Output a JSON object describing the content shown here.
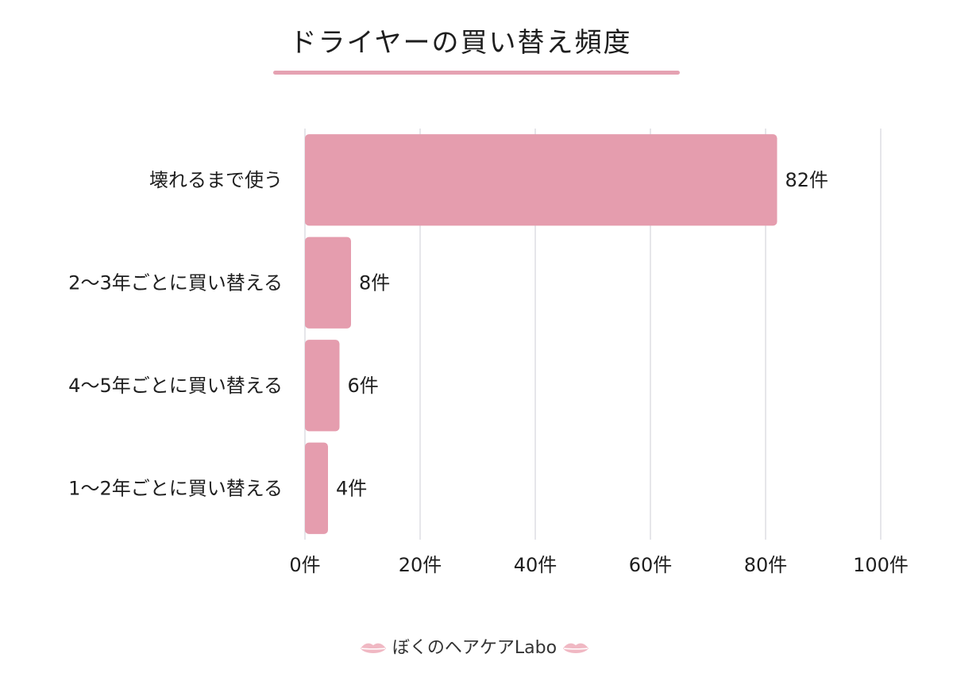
{
  "colors": {
    "bar": "#e59dae",
    "underline": "#e5a2b2",
    "grid": "#d5d5dc",
    "lips": "#f0b8c3"
  },
  "footer": {
    "text": "ぼくのヘアケアLabo",
    "icon": "lips-icon"
  },
  "chart_data": {
    "type": "bar",
    "orientation": "horizontal",
    "title": "ドライヤーの買い替え頻度",
    "categories": [
      "壊れるまで使う",
      "2〜3年ごとに買い替える",
      "4〜5年ごとに買い替える",
      "1〜2年ごとに買い替える"
    ],
    "values": [
      82,
      8,
      6,
      4
    ],
    "data_labels": [
      "82件",
      "8件",
      "6件",
      "4件"
    ],
    "xlim": [
      0,
      100
    ],
    "xticks": [
      0,
      20,
      40,
      60,
      80,
      100
    ],
    "xtick_labels": [
      "0件",
      "20件",
      "40件",
      "60件",
      "80件",
      "100件"
    ],
    "grid": "vertical",
    "legend": "none"
  }
}
